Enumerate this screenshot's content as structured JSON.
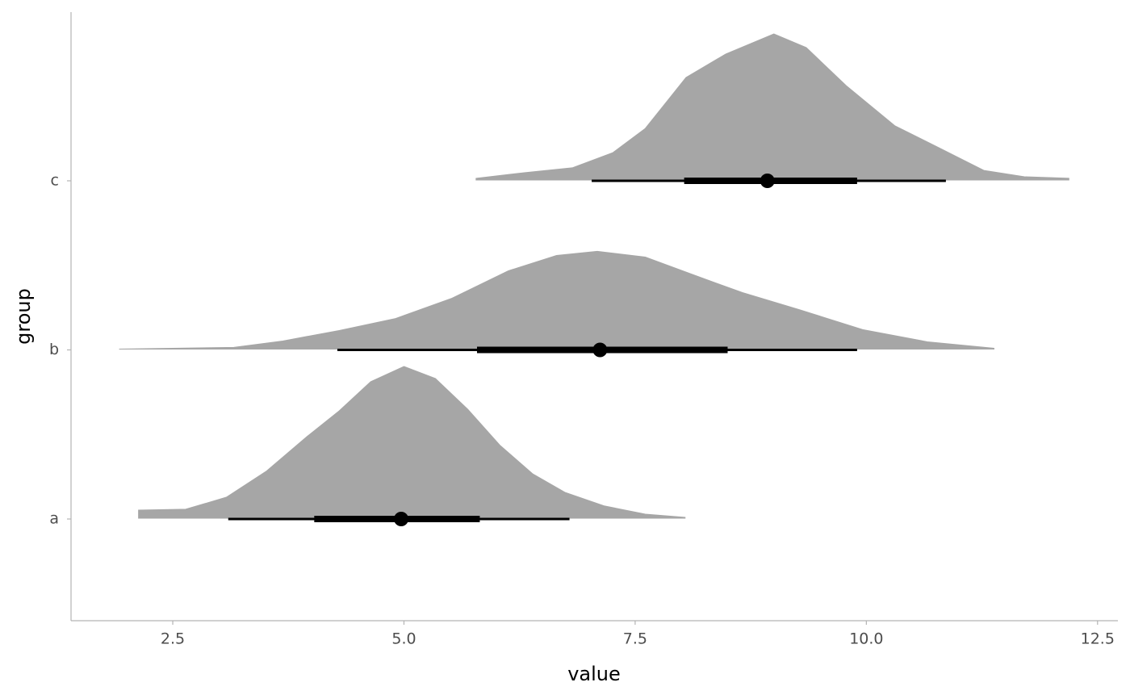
{
  "chart_data": {
    "type": "halfeye",
    "x_label": "value",
    "y_label": "group",
    "categories": [
      "a",
      "b",
      "c"
    ],
    "color": "#a6a6a6",
    "interval_color": "#000000",
    "xlim": [
      1.4,
      12.72
    ],
    "xticks": [
      2.5,
      {
        "value": 5,
        "label": "5.0"
      },
      7.5,
      {
        "value": 10,
        "label": "10.0"
      },
      12.5
    ],
    "groups": [
      {
        "x": [
          2.13,
          2.64,
          3.08,
          3.51,
          3.95,
          4.3,
          4.64,
          5.0,
          5.34,
          5.69,
          6.04,
          6.39,
          6.74,
          7.17,
          7.61,
          8.04
        ],
        "density": [
          0.048,
          0.053,
          0.124,
          0.277,
          0.482,
          0.635,
          0.807,
          0.897,
          0.826,
          0.644,
          0.43,
          0.263,
          0.153,
          0.072,
          0.024,
          0.005
        ],
        "point": 4.97,
        "interval_66": [
          4.03,
          5.82
        ],
        "interval_95": [
          3.1,
          6.79
        ]
      },
      {
        "x": [
          1.92,
          3.16,
          3.69,
          4.3,
          4.91,
          5.52,
          6.13,
          6.65,
          7.09,
          7.61,
          8.13,
          8.66,
          9.27,
          9.96,
          10.66,
          11.38
        ],
        "density": [
          0.0,
          0.01,
          0.048,
          0.11,
          0.181,
          0.301,
          0.463,
          0.554,
          0.578,
          0.544,
          0.439,
          0.334,
          0.234,
          0.115,
          0.043,
          0.005
        ],
        "point": 7.12,
        "interval_66": [
          5.79,
          8.5
        ],
        "interval_95": [
          4.28,
          9.9
        ]
      },
      {
        "x": [
          5.78,
          6.3,
          6.82,
          7.26,
          7.61,
          8.05,
          8.48,
          9.0,
          9.35,
          9.79,
          10.31,
          10.75,
          11.27,
          11.71,
          12.19
        ],
        "density": [
          0.01,
          0.043,
          0.072,
          0.162,
          0.305,
          0.606,
          0.745,
          0.864,
          0.783,
          0.554,
          0.32,
          0.2,
          0.057,
          0.019,
          0.01
        ],
        "point": 8.93,
        "interval_66": [
          8.03,
          9.9
        ],
        "interval_95": [
          7.03,
          10.86
        ]
      }
    ]
  }
}
